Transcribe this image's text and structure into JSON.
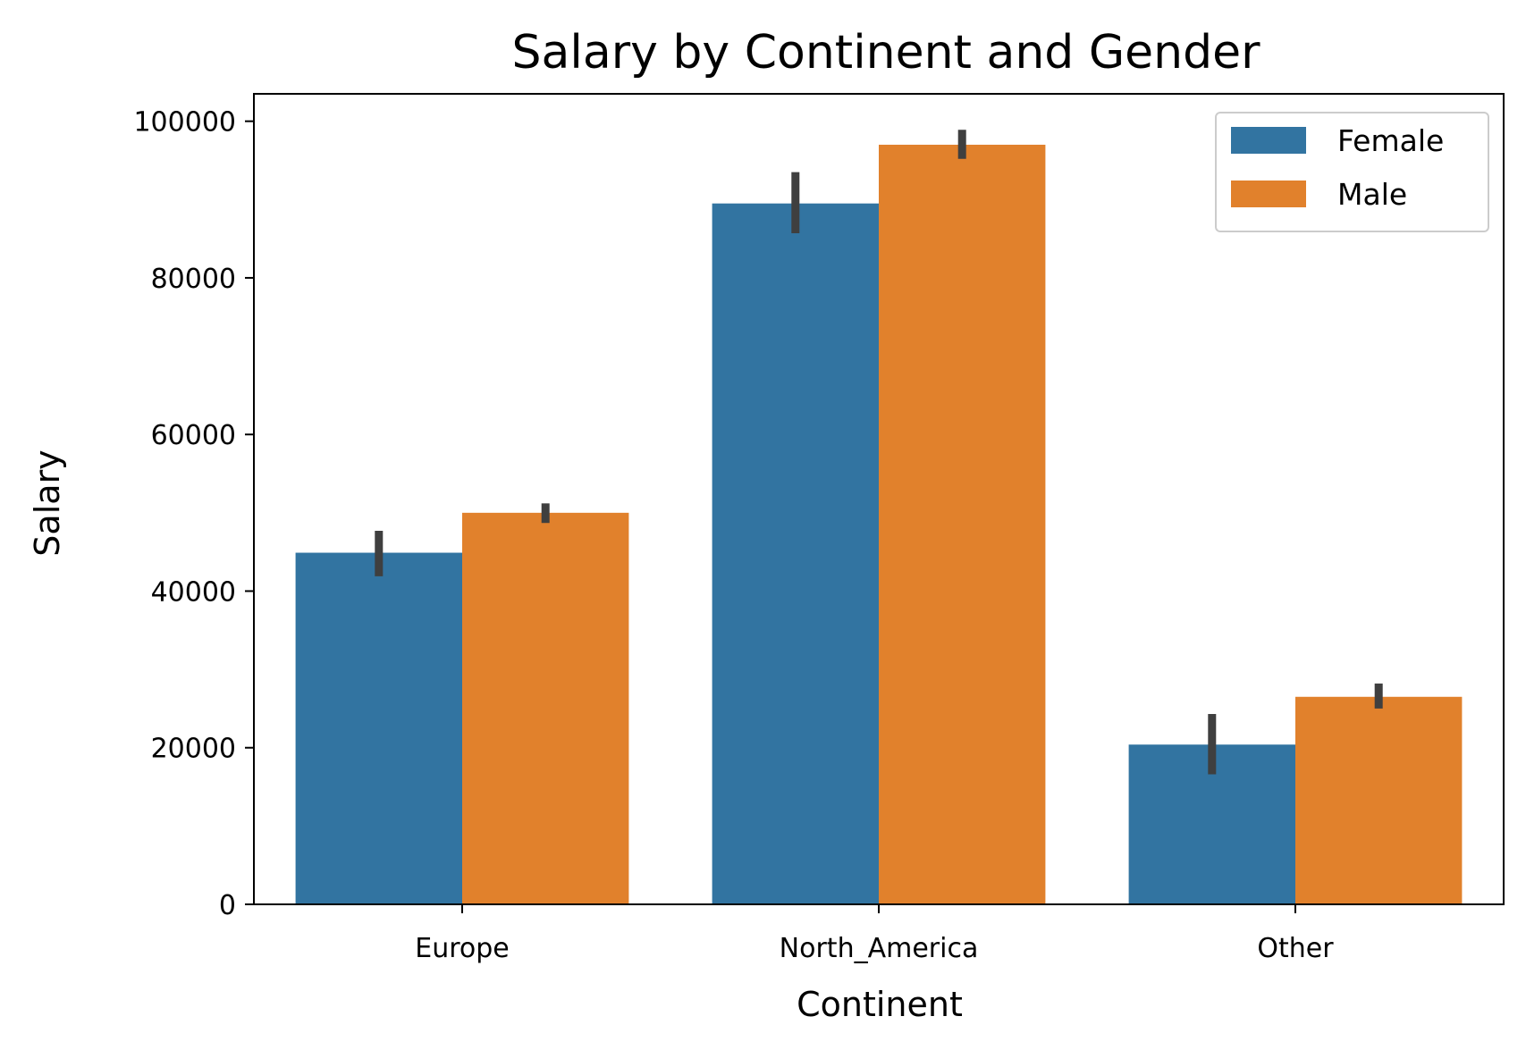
{
  "chart_data": {
    "type": "bar",
    "title": "Salary by Continent and Gender",
    "xlabel": "Continent",
    "ylabel": "Salary",
    "categories": [
      "Europe",
      "North_America",
      "Other"
    ],
    "ylim": [
      0,
      103500
    ],
    "yticks": [
      0,
      20000,
      40000,
      60000,
      80000,
      100000
    ],
    "ytick_labels": [
      "0",
      "20000",
      "40000",
      "60000",
      "80000",
      "100000"
    ],
    "grid": false,
    "legend": {
      "position": "top-right"
    },
    "series": [
      {
        "name": "Female",
        "color": "#3274a1",
        "values": [
          44900,
          89500,
          20400
        ],
        "error_low": [
          41900,
          85700,
          16600
        ],
        "error_high": [
          47700,
          93500,
          24300
        ]
      },
      {
        "name": "Male",
        "color": "#e1812c",
        "values": [
          50000,
          97000,
          26500
        ],
        "error_low": [
          48700,
          95200,
          25000
        ],
        "error_high": [
          51200,
          98900,
          28200
        ]
      }
    ],
    "error_bar_color": "#3f3f3f"
  }
}
